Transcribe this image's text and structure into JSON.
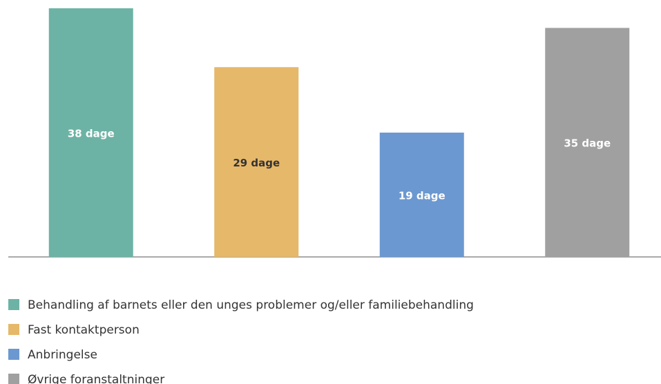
{
  "chart_data": {
    "type": "bar",
    "categories": [
      "Behandling af barnets eller den unges problemer og/eller familiebehandling",
      "Fast kontaktperson",
      "Anbringelse",
      "Øvrige foranstaltninger"
    ],
    "values": [
      38,
      29,
      19,
      35
    ],
    "value_labels": [
      "38 dage",
      "29 dage",
      "19 dage",
      "35 dage"
    ],
    "colors": [
      "#6db3a5",
      "#e6b86a",
      "#6b98d0",
      "#a0a0a0"
    ],
    "value_label_colors": [
      "#ffffff",
      "#333333",
      "#ffffff",
      "#ffffff"
    ],
    "ylim": [
      0,
      38
    ],
    "legend": "bottom-left"
  }
}
